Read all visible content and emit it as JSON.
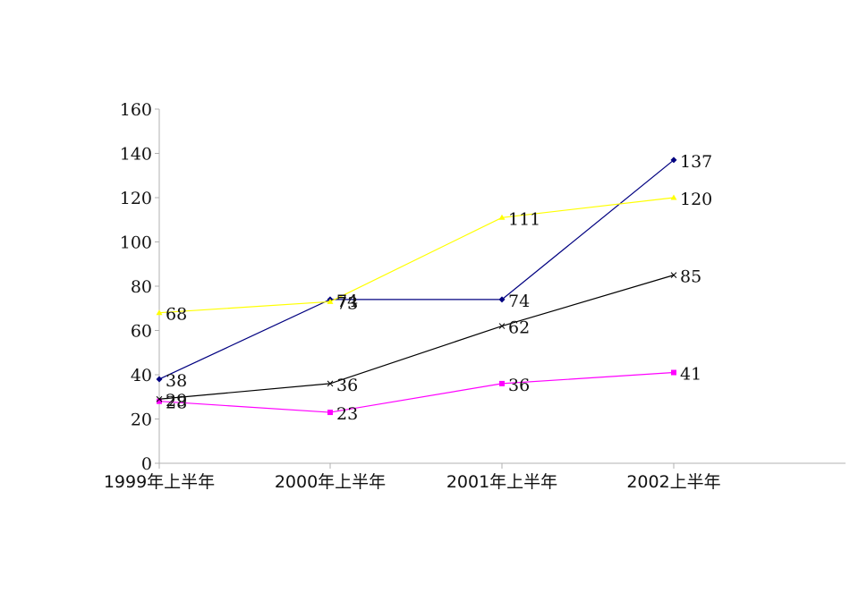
{
  "chart_data": {
    "type": "line",
    "title": "",
    "xlabel": "",
    "ylabel": "",
    "categories": [
      "1999年上半年",
      "2000年上半年",
      "2001年上半年",
      "2002上半年"
    ],
    "ylim": [
      0,
      160
    ],
    "yticks": [
      0,
      20,
      40,
      60,
      80,
      100,
      120,
      140,
      160
    ],
    "ytick_labels": [
      "0",
      "20",
      "40",
      "60",
      "80",
      "100",
      "120",
      "140",
      "160"
    ],
    "grid": false,
    "legend": "none",
    "series": [
      {
        "name": "series-navy",
        "color": "#000080",
        "marker": "diamond",
        "values": [
          38,
          74,
          74,
          137
        ],
        "labels": [
          "38",
          "74",
          "74",
          "137"
        ]
      },
      {
        "name": "series-magenta",
        "color": "#ff00ff",
        "marker": "square",
        "values": [
          28,
          23,
          36,
          41
        ],
        "labels": [
          "28",
          "23",
          "36",
          "41"
        ]
      },
      {
        "name": "series-yellow",
        "color": "#ffff00",
        "marker": "triangle",
        "values": [
          68,
          73,
          111,
          120
        ],
        "labels": [
          "68",
          "73",
          "111",
          "120"
        ]
      },
      {
        "name": "series-black",
        "color": "#000000",
        "marker": "x",
        "values": [
          29,
          36,
          62,
          85
        ],
        "labels": [
          "29",
          "36",
          "62",
          "85"
        ]
      }
    ]
  }
}
